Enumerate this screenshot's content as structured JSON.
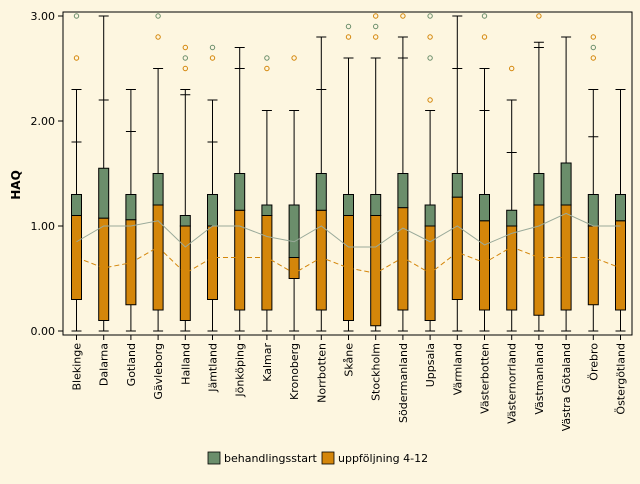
{
  "chart_data": {
    "type": "boxplot",
    "title": "",
    "xlabel": "",
    "ylabel": "HAQ",
    "ylim": [
      0,
      3
    ],
    "yticks": [
      0,
      1,
      2,
      3
    ],
    "ytick_labels": [
      "0.00",
      "1.00",
      "2.00",
      "3.00"
    ],
    "grid": false,
    "categories": [
      "Blekinge",
      "Dalarna",
      "Gotland",
      "Gävleborg",
      "Halland",
      "Jämtland",
      "Jönköping",
      "Kalmar",
      "Kronoberg",
      "Norrbotten",
      "Skåne",
      "Stockholm",
      "Södermanland",
      "Uppsala",
      "Värmland",
      "Västerbotten",
      "Västernorrland",
      "Västmanland",
      "Västra Götaland",
      "Örebro",
      "Östergötland"
    ],
    "legend_position": "bottom",
    "series": [
      {
        "name": "behandlingsstart",
        "color": "#6b8e6b",
        "outlier_color": "#6b8e6b",
        "line_style": "solid",
        "boxes": [
          {
            "whisker_low": 0,
            "q1": 0.3,
            "median": 1.1,
            "q3": 1.3,
            "whisker_high": 2.3,
            "upper_bar": 1.8,
            "outliers": [
              2.6,
              3.0
            ]
          },
          {
            "whisker_low": 0,
            "q1": 0.1,
            "median": 1.075,
            "q3": 1.55,
            "whisker_high": 3.0,
            "upper_bar": 2.2,
            "outliers": []
          },
          {
            "whisker_low": 0,
            "q1": 0.25,
            "median": 1.06,
            "q3": 1.3,
            "whisker_high": 2.3,
            "upper_bar": 1.9,
            "outliers": []
          },
          {
            "whisker_low": 0,
            "q1": 0.2,
            "median": 1.2,
            "q3": 1.5,
            "whisker_high": 2.5,
            "upper_bar": 2.5,
            "outliers": [
              2.8,
              3.0
            ]
          },
          {
            "whisker_low": 0,
            "q1": 0.1,
            "median": 1.0,
            "q3": 1.1,
            "whisker_high": 2.3,
            "upper_bar": 2.25,
            "outliers": [
              2.5,
              2.6,
              2.7
            ]
          },
          {
            "whisker_low": 0,
            "q1": 0.3,
            "median": 1.0,
            "q3": 1.3,
            "whisker_high": 2.2,
            "upper_bar": 1.8,
            "outliers": [
              2.6,
              2.7
            ]
          },
          {
            "whisker_low": 0,
            "q1": 0.2,
            "median": 1.15,
            "q3": 1.5,
            "whisker_high": 2.7,
            "upper_bar": 2.5,
            "outliers": []
          },
          {
            "whisker_low": 0,
            "q1": 0.2,
            "median": 1.1,
            "q3": 1.2,
            "whisker_high": 2.1,
            "upper_bar": 2.1,
            "outliers": [
              2.5,
              2.6
            ]
          },
          {
            "whisker_low": 0,
            "q1": 0.5,
            "median": 0.7,
            "q3": 1.2,
            "whisker_high": 2.1,
            "upper_bar": 2.1,
            "outliers": [
              2.6
            ]
          },
          {
            "whisker_low": 0,
            "q1": 0.2,
            "median": 1.15,
            "q3": 1.5,
            "whisker_high": 2.8,
            "upper_bar": 2.3,
            "outliers": []
          },
          {
            "whisker_low": 0,
            "q1": 0.1,
            "median": 1.1,
            "q3": 1.3,
            "whisker_high": 2.6,
            "upper_bar": 2.6,
            "outliers": [
              2.8,
              2.9
            ]
          },
          {
            "whisker_low": 0,
            "q1": 0.05,
            "median": 1.1,
            "q3": 1.3,
            "whisker_high": 2.6,
            "upper_bar": 2.6,
            "outliers": [
              2.8,
              2.9,
              3.0
            ]
          },
          {
            "whisker_low": 0,
            "q1": 0.2,
            "median": 1.175,
            "q3": 1.5,
            "whisker_high": 2.8,
            "upper_bar": 2.6,
            "outliers": [
              3.0
            ]
          },
          {
            "whisker_low": 0,
            "q1": 0.1,
            "median": 1.0,
            "q3": 1.2,
            "whisker_high": 2.1,
            "upper_bar": 2.1,
            "outliers": [
              2.2,
              2.6,
              2.8,
              3.0
            ]
          },
          {
            "whisker_low": 0,
            "q1": 0.3,
            "median": 1.275,
            "q3": 1.5,
            "whisker_high": 3.0,
            "upper_bar": 2.5,
            "outliers": []
          },
          {
            "whisker_low": 0,
            "q1": 0.2,
            "median": 1.05,
            "q3": 1.3,
            "whisker_high": 2.5,
            "upper_bar": 2.1,
            "outliers": [
              2.8,
              3.0
            ]
          },
          {
            "whisker_low": 0,
            "q1": 0.2,
            "median": 1.0,
            "q3": 1.15,
            "whisker_high": 2.2,
            "upper_bar": 1.7,
            "outliers": [
              2.5
            ]
          },
          {
            "whisker_low": 0,
            "q1": 0.15,
            "median": 1.2,
            "q3": 1.5,
            "whisker_high": 2.75,
            "upper_bar": 2.7,
            "outliers": [
              3.0
            ]
          },
          {
            "whisker_low": 0,
            "q1": 0.2,
            "median": 1.2,
            "q3": 1.6,
            "whisker_high": 2.8,
            "upper_bar": 2.8,
            "outliers": []
          },
          {
            "whisker_low": 0,
            "q1": 0.25,
            "median": 1.0,
            "q3": 1.3,
            "whisker_high": 2.3,
            "upper_bar": 1.85,
            "outliers": [
              2.6,
              2.7,
              2.8
            ]
          },
          {
            "whisker_low": 0,
            "q1": 0.2,
            "median": 1.05,
            "q3": 1.3,
            "whisker_high": 2.3,
            "upper_bar": 2.3,
            "outliers": []
          }
        ],
        "mean_line": [
          0.85,
          1.0,
          1.0,
          1.05,
          0.8,
          1.0,
          1.0,
          0.9,
          0.85,
          1.0,
          0.8,
          0.8,
          0.98,
          0.85,
          1.0,
          0.82,
          0.93,
          1.0,
          1.12,
          1.0,
          1.0
        ]
      },
      {
        "name": "uppföljning 4-12",
        "color": "#d4860a",
        "outlier_color": "#d4860a",
        "line_style": "dashed",
        "mean_line": [
          0.7,
          0.6,
          0.65,
          0.8,
          0.55,
          0.7,
          0.7,
          0.7,
          0.55,
          0.7,
          0.6,
          0.55,
          0.7,
          0.55,
          0.75,
          0.65,
          0.8,
          0.7,
          0.7,
          0.7,
          0.6
        ]
      }
    ]
  }
}
